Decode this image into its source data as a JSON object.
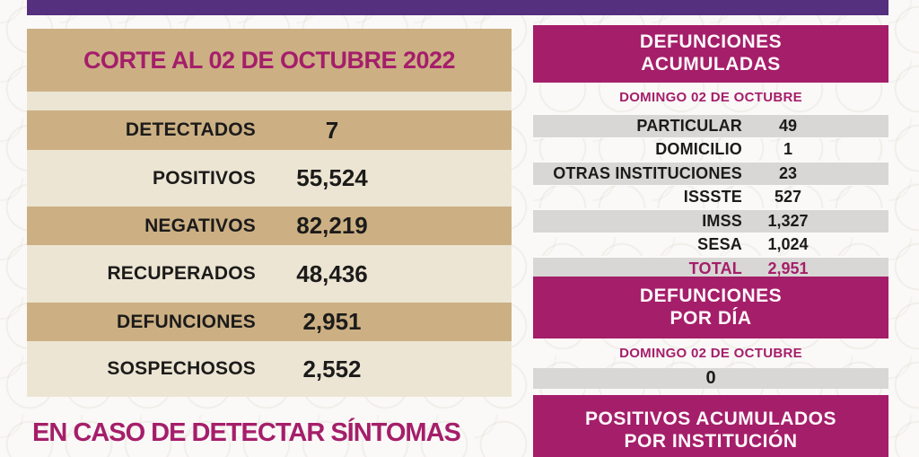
{
  "theme": {
    "accent_purple": "#54307e",
    "accent_magenta": "#a51e6a",
    "tan": "#ccb084",
    "cream": "#ece5d3",
    "row_gray": "#d8d7d5",
    "text_dark": "#1c1b1a"
  },
  "summary_panel": {
    "title": "CORTE AL 02 DE OCTUBRE 2022",
    "rows": [
      {
        "label": "DETECTADOS",
        "value": "7"
      },
      {
        "label": "POSITIVOS",
        "value": "55,524"
      },
      {
        "label": "NEGATIVOS",
        "value": "82,219"
      },
      {
        "label": "RECUPERADOS",
        "value": "48,436"
      },
      {
        "label": "DEFUNCIONES",
        "value": "2,951"
      },
      {
        "label": "SOSPECHOSOS",
        "value": "2,552"
      }
    ],
    "footer_note": "EN CASO DE DETECTAR SÍNTOMAS"
  },
  "deaths_accumulated": {
    "title_line1": "DEFUNCIONES",
    "title_line2": "ACUMULADAS",
    "date": "DOMINGO 02 DE OCTUBRE",
    "rows": [
      {
        "label": "PARTICULAR",
        "value": "49"
      },
      {
        "label": "DOMICILIO",
        "value": "1"
      },
      {
        "label": "OTRAS INSTITUCIONES",
        "value": "23"
      },
      {
        "label": "ISSSTE",
        "value": "527"
      },
      {
        "label": "IMSS",
        "value": "1,327"
      },
      {
        "label": "SESA",
        "value": "1,024"
      }
    ],
    "total": {
      "label": "TOTAL",
      "value": "2,951"
    }
  },
  "deaths_per_day": {
    "title_line1": "DEFUNCIONES",
    "title_line2": "POR DÍA",
    "date": "DOMINGO 02 DE OCTUBRE",
    "value": "0"
  },
  "positives_by_institution": {
    "title_line1": "POSITIVOS ACUMULADOS",
    "title_line2": "POR INSTITUCIÓN"
  }
}
